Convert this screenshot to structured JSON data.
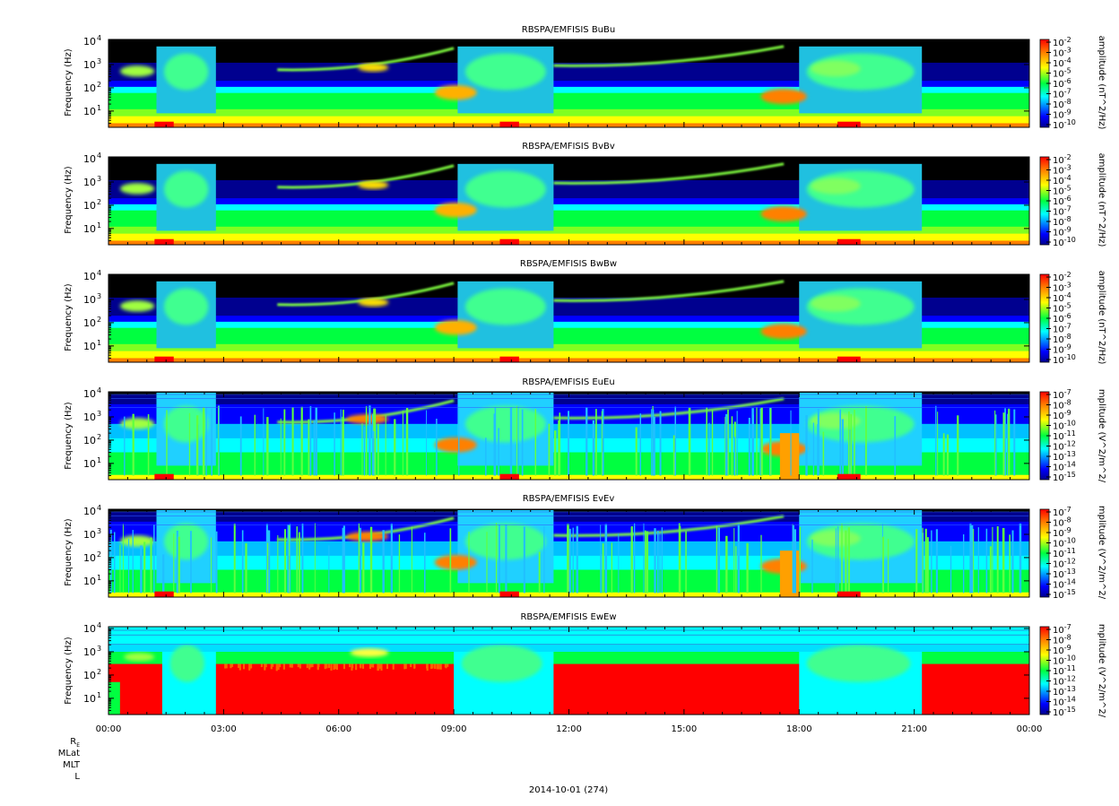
{
  "figure": {
    "date_label": "2014-10-01 (274)",
    "ephemeris_labels": [
      "R",
      "MLat",
      "MLT",
      "L"
    ],
    "re_subscript": "E"
  },
  "chart_data": [
    {
      "type": "heatmap",
      "title": "RBSPA/EMFISIS  BuBu",
      "ylabel": "Frequency (Hz)",
      "colorbar_label": "amplitude (nT^2/Hz)",
      "colorbar_ticks": [
        "10-2",
        "10-3",
        "10-4",
        "10-5",
        "10-6",
        "10-7",
        "10-8",
        "10-9",
        "10-10"
      ],
      "colorbar_range_log10": [
        -10,
        -2
      ],
      "yticks": [
        "10",
        "10",
        "10",
        "10"
      ],
      "yticks_exp": [
        "4",
        "3",
        "2",
        "1"
      ],
      "ylim_hz": [
        2,
        12000
      ],
      "yscale": "log",
      "component": "B"
    },
    {
      "type": "heatmap",
      "title": "RBSPA/EMFISIS  BvBv",
      "ylabel": "Frequency (Hz)",
      "colorbar_label": "amplitude (nT^2/Hz)",
      "colorbar_ticks": [
        "10-2",
        "10-3",
        "10-4",
        "10-5",
        "10-6",
        "10-7",
        "10-8",
        "10-9",
        "10-10"
      ],
      "colorbar_range_log10": [
        -10,
        -2
      ],
      "yticks": [
        "10",
        "10",
        "10",
        "10"
      ],
      "yticks_exp": [
        "4",
        "3",
        "2",
        "1"
      ],
      "ylim_hz": [
        2,
        12000
      ],
      "yscale": "log",
      "component": "B"
    },
    {
      "type": "heatmap",
      "title": "RBSPA/EMFISIS  BwBw",
      "ylabel": "Frequency (Hz)",
      "colorbar_label": "amplitude (nT^2/Hz)",
      "colorbar_ticks": [
        "10-2",
        "10-3",
        "10-4",
        "10-5",
        "10-6",
        "10-7",
        "10-8",
        "10-9",
        "10-10"
      ],
      "colorbar_range_log10": [
        -10,
        -2
      ],
      "yticks": [
        "10",
        "10",
        "10",
        "10"
      ],
      "yticks_exp": [
        "4",
        "3",
        "2",
        "1"
      ],
      "ylim_hz": [
        2,
        12000
      ],
      "yscale": "log",
      "component": "B"
    },
    {
      "type": "heatmap",
      "title": "RBSPA/EMFISIS  EuEu",
      "ylabel": "Frequency (Hz)",
      "colorbar_label": "mplitude (V^2/m^2/",
      "colorbar_ticks": [
        "10-7",
        "10-8",
        "10-9",
        "10-10",
        "10-11",
        "10-12",
        "10-13",
        "10-14",
        "10-15"
      ],
      "colorbar_range_log10": [
        -15,
        -7
      ],
      "yticks": [
        "10",
        "10",
        "10",
        "10"
      ],
      "yticks_exp": [
        "4",
        "3",
        "2",
        "1"
      ],
      "ylim_hz": [
        2,
        12000
      ],
      "yscale": "log",
      "component": "E"
    },
    {
      "type": "heatmap",
      "title": "RBSPA/EMFISIS  EvEv",
      "ylabel": "Frequency (Hz)",
      "colorbar_label": "mplitude (V^2/m^2/",
      "colorbar_ticks": [
        "10-7",
        "10-8",
        "10-9",
        "10-10",
        "10-11",
        "10-12",
        "10-13",
        "10-14",
        "10-15"
      ],
      "colorbar_range_log10": [
        -15,
        -7
      ],
      "yticks": [
        "10",
        "10",
        "10",
        "10"
      ],
      "yticks_exp": [
        "4",
        "3",
        "2",
        "1"
      ],
      "ylim_hz": [
        2,
        12000
      ],
      "yscale": "log",
      "component": "E"
    },
    {
      "type": "heatmap",
      "title": "RBSPA/EMFISIS  EwEw",
      "ylabel": "Frequency (Hz)",
      "colorbar_label": "mplitude (V^2/m^2/",
      "colorbar_ticks": [
        "10-7",
        "10-8",
        "10-9",
        "10-10",
        "10-11",
        "10-12",
        "10-13",
        "10-14",
        "10-15"
      ],
      "colorbar_range_log10": [
        -15,
        -7
      ],
      "yticks": [
        "10",
        "10",
        "10",
        "10"
      ],
      "yticks_exp": [
        "4",
        "3",
        "2",
        "1"
      ],
      "ylim_hz": [
        2,
        12000
      ],
      "yscale": "log",
      "component": "Ew",
      "xticks": [
        "00:00",
        "03:00",
        "06:00",
        "09:00",
        "12:00",
        "15:00",
        "18:00",
        "21:00",
        "00:00"
      ],
      "xlim_hours": [
        0,
        24
      ]
    }
  ],
  "colors": {
    "black": "#000000",
    "dark_blue": "#00008f",
    "blue": "#0000ff",
    "cyan": "#00ffff",
    "green": "#00ff40",
    "yellow": "#ffff00",
    "orange": "#ff8000",
    "red": "#ff0000"
  }
}
